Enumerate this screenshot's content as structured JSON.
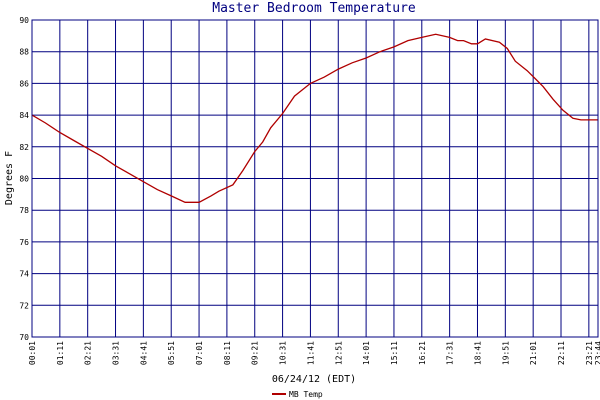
{
  "chart_data": {
    "type": "line",
    "title": "Master Bedroom Temperature",
    "xlabel": "06/24/12 (EDT)",
    "ylabel": "Degrees F",
    "ylim": [
      70,
      90
    ],
    "yticks": [
      70,
      72,
      74,
      76,
      78,
      80,
      82,
      84,
      86,
      88,
      90
    ],
    "xticks": [
      "00:01",
      "01:11",
      "02:21",
      "03:31",
      "04:41",
      "05:51",
      "07:01",
      "08:11",
      "09:21",
      "10:31",
      "11:41",
      "12:51",
      "14:01",
      "15:11",
      "16:21",
      "17:31",
      "18:41",
      "19:51",
      "21:01",
      "22:11",
      "23:21",
      "23:44"
    ],
    "xlim_minutes": [
      1,
      1424
    ],
    "grid": true,
    "legend_position": "bottom-left",
    "colors": {
      "background": "#ffffff",
      "grid": "#000080",
      "series": "#b00000",
      "text": "#000080"
    },
    "series": [
      {
        "name": "MB Temp",
        "x": [
          1,
          35,
          71,
          106,
          141,
          176,
          211,
          246,
          281,
          316,
          351,
          386,
          421,
          451,
          471,
          506,
          531,
          561,
          581,
          601,
          631,
          661,
          701,
          736,
          771,
          806,
          841,
          876,
          911,
          946,
          981,
          1016,
          1051,
          1071,
          1086,
          1106,
          1121,
          1141,
          1176,
          1196,
          1216,
          1246,
          1266,
          1286,
          1311,
          1336,
          1361,
          1381,
          1401,
          1424
        ],
        "y": [
          84.0,
          83.5,
          82.9,
          82.4,
          81.9,
          81.4,
          80.8,
          80.3,
          79.8,
          79.3,
          78.9,
          78.5,
          78.5,
          78.9,
          79.2,
          79.6,
          80.5,
          81.7,
          82.3,
          83.2,
          84.1,
          85.2,
          86.0,
          86.4,
          86.9,
          87.3,
          87.6,
          88.0,
          88.3,
          88.7,
          88.9,
          89.1,
          88.9,
          88.7,
          88.7,
          88.5,
          88.5,
          88.8,
          88.6,
          88.2,
          87.4,
          86.8,
          86.3,
          85.8,
          85.0,
          84.3,
          83.8,
          83.7,
          83.7,
          83.7
        ]
      }
    ]
  }
}
